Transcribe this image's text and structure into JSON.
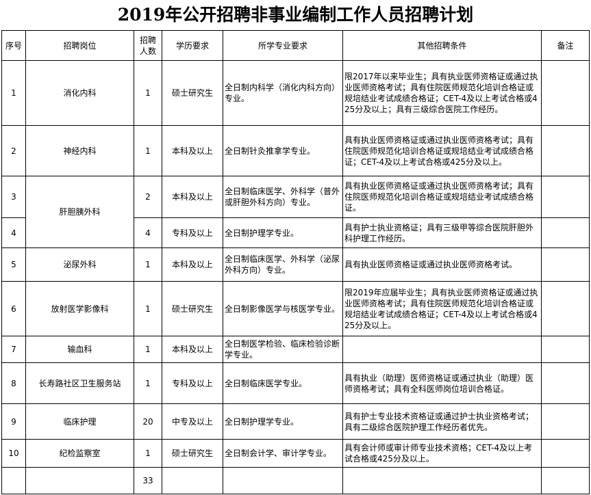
{
  "title": "2019年公开招聘非事业编制工作人员招聘计划",
  "headers": [
    "序号",
    "招聘岗位",
    "招聘人数",
    "学历要求",
    "所学专业要求",
    "其他招聘条件",
    "备注"
  ],
  "rows": [
    {
      "no": "1",
      "post": "消化内科",
      "count": "1",
      "edu": "硕士研究生",
      "major": "全日制内科学（消化内科方向）专业。",
      "other": "限2017年以来毕业生；具有执业医师资格证或通过执业医师资格考试；具有住院医师规范化培训合格证或规培结业考试成绩合格证；CET-4及以上考试合格或425分及以上；具有三级综合医院工作经历。",
      "note": ""
    },
    {
      "no": "2",
      "post": "神经内科",
      "count": "1",
      "edu": "本科及以上",
      "major": "全日制针灸推拿学专业。",
      "other": "具有执业医师资格证或通过执业医师资格考试；具有住院医师规范化培训合格证或规培结业考试成绩合格证；CET-4及以上考试合格或425分及以上。",
      "note": ""
    },
    {
      "no": "3",
      "post": "肝胆胰外科",
      "count": "2",
      "edu": "本科及以上",
      "major": "全日制临床医学、外科学（普外或肝胆外科方向）专业。",
      "other": "具有执业医师资格证或通过执业医师资格考试；具有住院医师规范化培训合格证或规培结业考试成绩合格证。",
      "note": ""
    },
    {
      "no": "4",
      "post": "",
      "count": "4",
      "edu": "专科及以上",
      "major": "全日制护理学专业。",
      "other": "具有护士执业资格证；具有三级甲等综合医院肝胆外科护理工作经历。",
      "note": ""
    },
    {
      "no": "5",
      "post": "泌尿外科",
      "count": "1",
      "edu": "本科及以上",
      "major": "全日制临床医学、外科学（泌尿外科方向）专业。",
      "other": "具有执业医师资格证或通过执业医师资格考试。",
      "note": ""
    },
    {
      "no": "6",
      "post": "放射医学影像科",
      "count": "1",
      "edu": "硕士研究生",
      "major": "全日制影像医学与核医学专业。",
      "other": "限2019年应届毕业生；具有执业医师资格证或通过执业医师资格考试；具有住院医师规范化培训合格证或规培结业考试成绩合格证；CET-4及以上考试合格或425分及以上。",
      "note": ""
    },
    {
      "no": "7",
      "post": "输血科",
      "count": "1",
      "edu": "本科及以上",
      "major": "全日制医学检验、临床检验诊断学专业。",
      "other": "",
      "note": ""
    },
    {
      "no": "8",
      "post": "长寿路社区卫生服务站",
      "count": "1",
      "edu": "专科及以上",
      "major": "全日制临床医学专业。",
      "other": "具有执业（助理）医师资格证或通过执业（助理）医师资格考试；具有全科医师岗位培训合格证。",
      "note": ""
    },
    {
      "no": "9",
      "post": "临床护理",
      "count": "20",
      "edu": "中专及以上",
      "major": "全日制护理学专业。",
      "other": "具有护士专业技术资格证或通过护士执业资格考试；具有二级综合医院护理工作经历者优先。",
      "note": ""
    },
    {
      "no": "10",
      "post": "纪检监察室",
      "count": "1",
      "edu": "硕士研究生",
      "major": "全日制会计学、审计学专业。",
      "other": "具有会计师或审计师专业技术资格；CET-4及以上考试合格或425分及以上。",
      "note": ""
    }
  ],
  "total": {
    "count": "33"
  }
}
